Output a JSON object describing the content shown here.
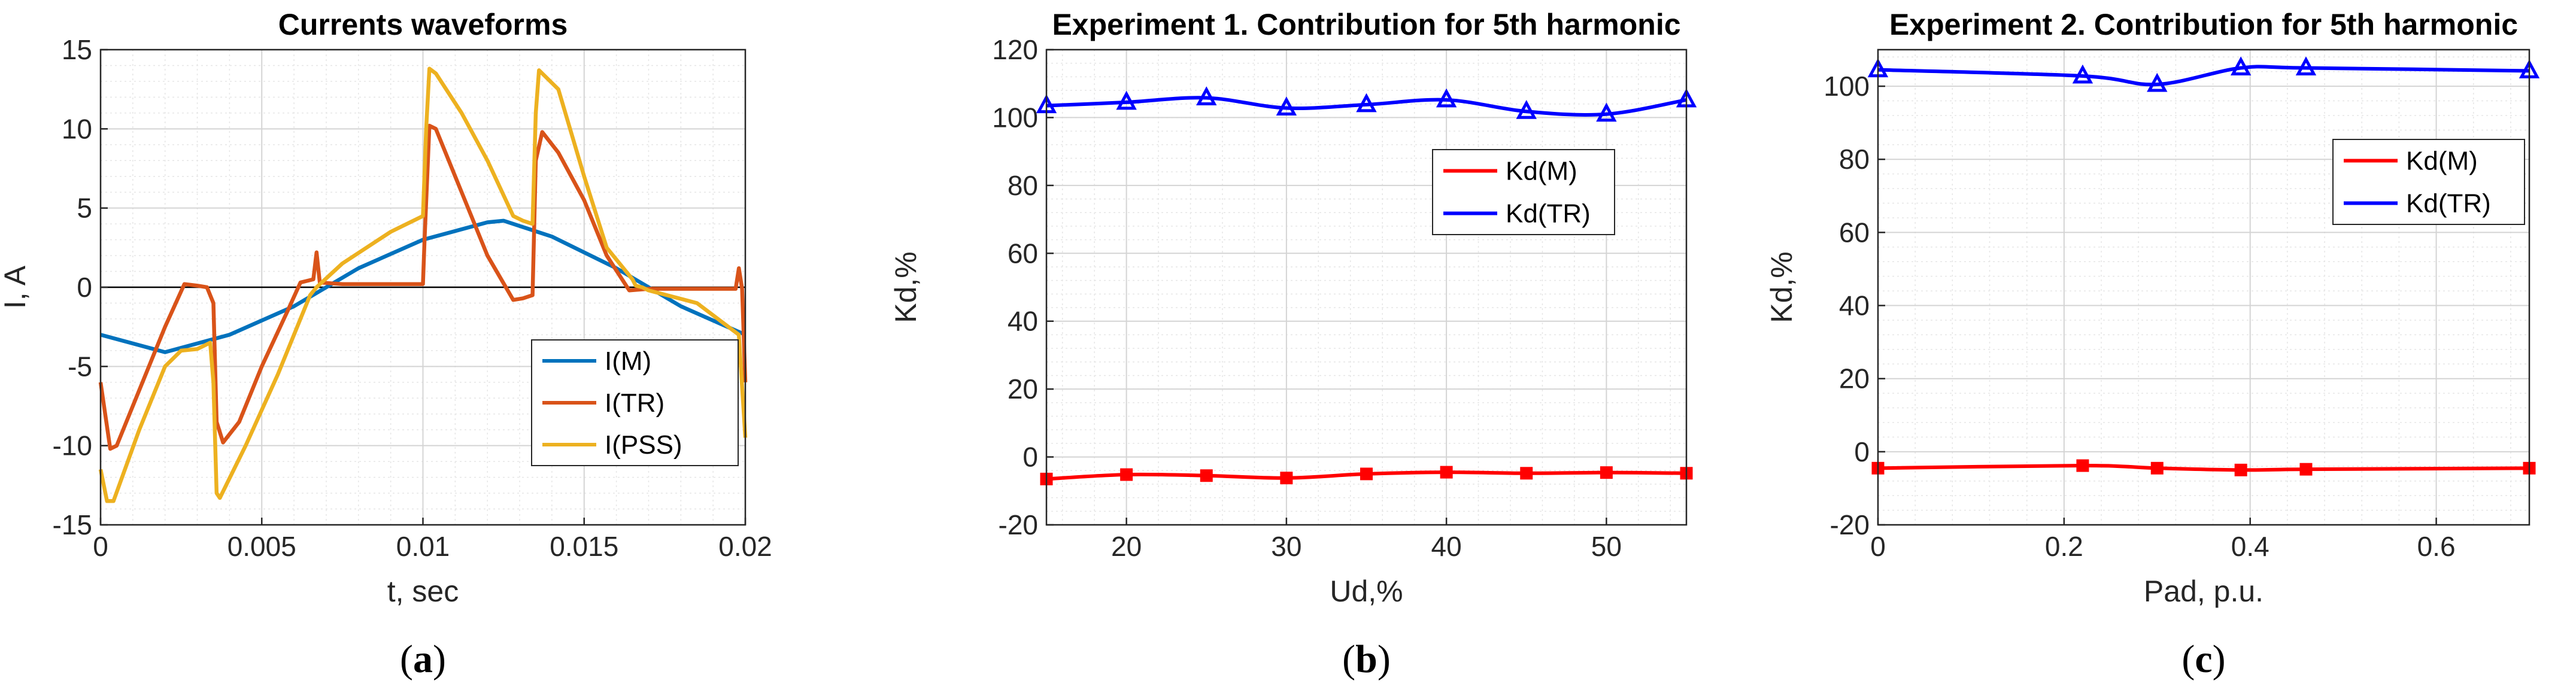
{
  "chart_data": [
    {
      "type": "line",
      "title": "Currents waveforms",
      "xlabel": "t, sec",
      "ylabel": "I, A",
      "xlim": [
        0,
        0.02
      ],
      "ylim": [
        -15,
        15
      ],
      "xticks": [
        0,
        0.005,
        0.01,
        0.015,
        0.02
      ],
      "xtick_labels": [
        "0",
        "0.005",
        "0.01",
        "0.015",
        "0.02"
      ],
      "yticks": [
        -15,
        -10,
        -5,
        0,
        5,
        10,
        15
      ],
      "ytick_labels": [
        "-15",
        "-10",
        "-5",
        "0",
        "5",
        "10",
        "15"
      ],
      "grid": true,
      "zero_line": true,
      "legend_position": "lower-right",
      "panel_label": {
        "open": "(",
        "letter": "a",
        "close": ")"
      },
      "series": [
        {
          "name": "I(M)",
          "color": "#0072BD",
          "x": [
            0,
            0.002,
            0.004,
            0.006,
            0.008,
            0.01,
            0.012,
            0.0125,
            0.014,
            0.016,
            0.018,
            0.02
          ],
          "y": [
            -3,
            -4.1,
            -3,
            -1.2,
            1.2,
            3,
            4.1,
            4.2,
            3.2,
            1.2,
            -1.2,
            -3
          ]
        },
        {
          "name": "I(TR)",
          "color": "#D95319",
          "x": [
            0,
            0.0003,
            0.0005,
            0.0012,
            0.002,
            0.0026,
            0.003,
            0.0033,
            0.0035,
            0.0036,
            0.0038,
            0.0043,
            0.005,
            0.0058,
            0.0062,
            0.0066,
            0.0067,
            0.0068,
            0.0075,
            0.009,
            0.01,
            0.01005,
            0.0102,
            0.0104,
            0.0112,
            0.012,
            0.0128,
            0.0131,
            0.0134,
            0.0135,
            0.0137,
            0.0142,
            0.015,
            0.0157,
            0.0164,
            0.017,
            0.0185,
            0.0197,
            0.0198,
            0.0199,
            0.02
          ],
          "y": [
            -6,
            -10.2,
            -10,
            -6.5,
            -2.5,
            0.2,
            0.1,
            0,
            -1,
            -8.5,
            -9.8,
            -8.5,
            -5,
            -1.5,
            0.3,
            0.5,
            2.2,
            0.3,
            0.2,
            0.2,
            0.2,
            3,
            10.2,
            10,
            6,
            2,
            -0.8,
            -0.7,
            -0.5,
            8,
            9.8,
            8.5,
            5.5,
            2,
            -0.2,
            -0.1,
            -0.1,
            -0.1,
            1.2,
            -0.1,
            -6
          ]
        },
        {
          "name": "I(PSS)",
          "color": "#EDB120",
          "x": [
            0,
            0.0002,
            0.0004,
            0.0012,
            0.002,
            0.0025,
            0.003,
            0.0034,
            0.0035,
            0.0036,
            0.0037,
            0.0045,
            0.0055,
            0.006,
            0.0065,
            0.0067,
            0.0075,
            0.009,
            0.01,
            0.0101,
            0.0102,
            0.0104,
            0.0112,
            0.012,
            0.0128,
            0.0131,
            0.0134,
            0.0135,
            0.0136,
            0.0142,
            0.015,
            0.0157,
            0.0165,
            0.0166,
            0.0168,
            0.017,
            0.0185,
            0.0198,
            0.02
          ],
          "y": [
            -11.5,
            -13.5,
            -13.5,
            -9,
            -5,
            -4,
            -3.9,
            -3.5,
            -6,
            -13,
            -13.3,
            -10,
            -5.5,
            -3,
            -0.5,
            0,
            1.5,
            3.5,
            4.5,
            10,
            13.8,
            13.5,
            11,
            8,
            4.5,
            4.2,
            4,
            11,
            13.7,
            12.5,
            7,
            2.5,
            0.5,
            0.1,
            0,
            -0.2,
            -1,
            -3,
            -9.5
          ]
        }
      ]
    },
    {
      "type": "line",
      "title": "Experiment 1. Contribution for 5th harmonic",
      "xlabel": "Ud,%",
      "ylabel": "Kd,%",
      "xlim": [
        15,
        55
      ],
      "ylim": [
        -20,
        120
      ],
      "xticks": [
        20,
        30,
        40,
        50
      ],
      "xtick_labels": [
        "20",
        "30",
        "40",
        "50"
      ],
      "yticks": [
        -20,
        0,
        20,
        40,
        60,
        80,
        100,
        120
      ],
      "ytick_labels": [
        "-20",
        "0",
        "20",
        "40",
        "60",
        "80",
        "100",
        "120"
      ],
      "grid": true,
      "legend_position": "upper-right",
      "panel_label": {
        "open": "(",
        "letter": "b",
        "close": ")"
      },
      "series": [
        {
          "name": "Kd(M)",
          "color": "#FF0000",
          "marker": "square",
          "x": [
            15,
            20,
            25,
            30,
            35,
            40,
            45,
            50,
            55
          ],
          "y": [
            -6.5,
            -5.2,
            -5.5,
            -6.2,
            -5,
            -4.5,
            -4.8,
            -4.6,
            -4.8
          ]
        },
        {
          "name": "Kd(TR)",
          "color": "#0000FF",
          "marker": "triangle",
          "x": [
            15,
            20,
            25,
            30,
            35,
            40,
            45,
            50,
            55
          ],
          "y": [
            103.5,
            104.5,
            105.8,
            102.8,
            103.8,
            105.2,
            101.8,
            101,
            105.2
          ]
        }
      ]
    },
    {
      "type": "line",
      "title": "Experiment 2. Contribution for 5th harmonic",
      "xlabel": "Pad, p.u.",
      "ylabel": "Kd,%",
      "xlim": [
        0,
        0.7
      ],
      "ylim": [
        -20,
        110
      ],
      "xticks": [
        0,
        0.2,
        0.4,
        0.6
      ],
      "xtick_labels": [
        "0",
        "0.2",
        "0.4",
        "0.6"
      ],
      "yticks": [
        -20,
        0,
        20,
        40,
        60,
        80,
        100
      ],
      "ytick_labels": [
        "-20",
        "0",
        "20",
        "40",
        "60",
        "80",
        "100"
      ],
      "grid": true,
      "legend_position": "upper-right",
      "panel_label": {
        "open": "(",
        "letter": "c",
        "close": ")"
      },
      "series": [
        {
          "name": "Kd(M)",
          "color": "#FF0000",
          "marker": "square",
          "x": [
            0,
            0.22,
            0.3,
            0.39,
            0.46,
            0.7
          ],
          "y": [
            -4.5,
            -3.8,
            -4.5,
            -5,
            -4.8,
            -4.5
          ]
        },
        {
          "name": "Kd(TR)",
          "color": "#0000FF",
          "marker": "triangle",
          "x": [
            0,
            0.22,
            0.3,
            0.39,
            0.46,
            0.7
          ],
          "y": [
            104.5,
            102.8,
            100.5,
            105,
            105,
            104.2
          ]
        }
      ]
    }
  ]
}
